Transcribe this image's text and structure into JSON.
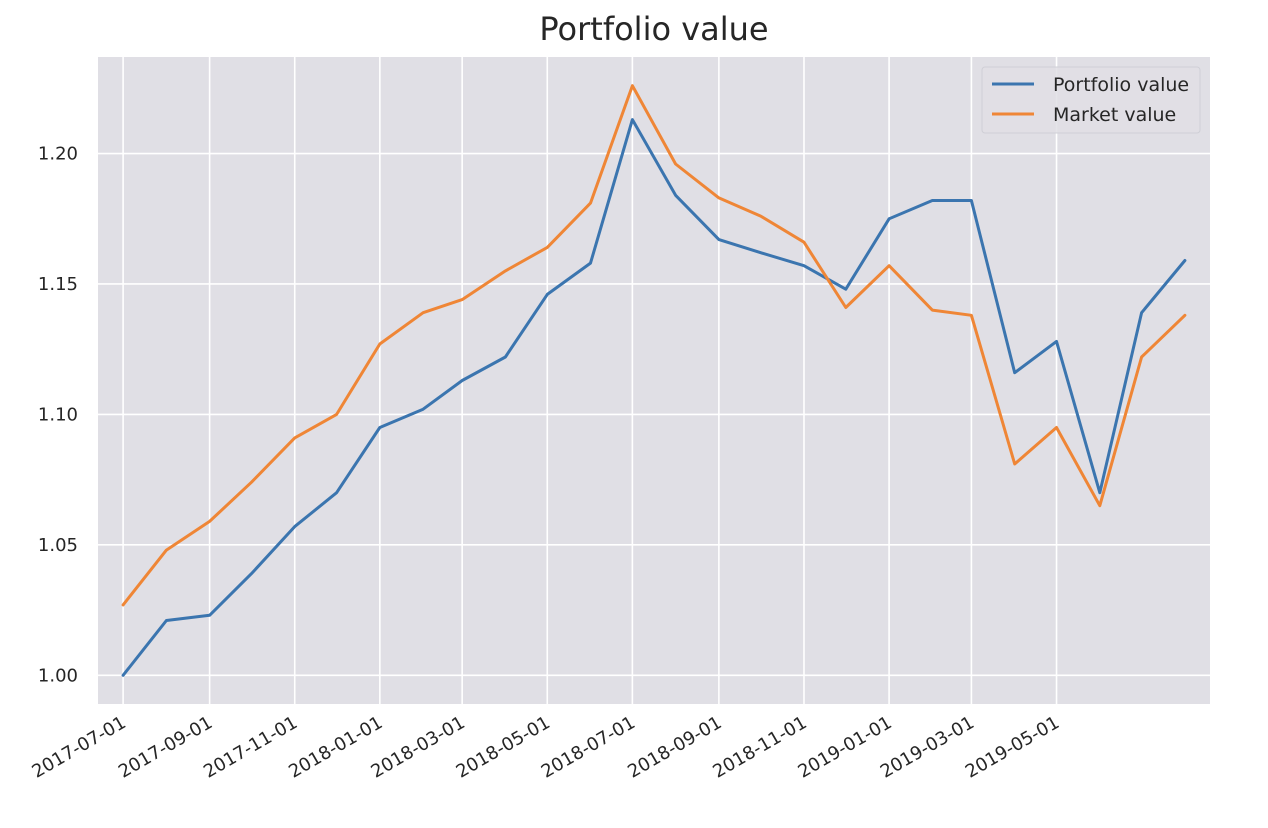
{
  "chart_data": {
    "type": "line",
    "title": "Portfolio value",
    "xlabel": "",
    "ylabel": "",
    "x": [
      "2017-07-01",
      "2017-08-01",
      "2017-09-01",
      "2017-10-01",
      "2017-11-01",
      "2017-12-01",
      "2018-01-01",
      "2018-02-01",
      "2018-03-01",
      "2018-04-01",
      "2018-05-01",
      "2018-06-01",
      "2018-07-01",
      "2018-08-01",
      "2018-09-01",
      "2018-10-01",
      "2018-11-01",
      "2018-12-01",
      "2019-01-01",
      "2019-02-01",
      "2019-03-01",
      "2019-04-01",
      "2019-05-01",
      "2019-06-01",
      "2019-07-01",
      "2019-08-01"
    ],
    "series": [
      {
        "name": "Portfolio value",
        "color": "#3b75af",
        "values": [
          1.0,
          1.021,
          1.023,
          1.039,
          1.057,
          1.07,
          1.095,
          1.102,
          1.113,
          1.122,
          1.146,
          1.158,
          1.213,
          1.184,
          1.167,
          1.162,
          1.157,
          1.148,
          1.175,
          1.182,
          1.182,
          1.116,
          1.128,
          1.07,
          1.139,
          1.159
        ]
      },
      {
        "name": "Market value",
        "color": "#ef8636",
        "values": [
          1.027,
          1.048,
          1.059,
          1.074,
          1.091,
          1.1,
          1.127,
          1.139,
          1.144,
          1.155,
          1.164,
          1.181,
          1.226,
          1.196,
          1.183,
          1.176,
          1.166,
          1.141,
          1.157,
          1.14,
          1.138,
          1.081,
          1.095,
          1.065,
          1.122,
          1.138
        ]
      }
    ],
    "xticks": [
      "2017-07-01",
      "2017-09-01",
      "2017-11-01",
      "2018-01-01",
      "2018-03-01",
      "2018-05-01",
      "2018-07-01",
      "2018-09-01",
      "2018-11-01",
      "2019-01-01",
      "2019-03-01",
      "2019-05-01"
    ],
    "yticks": [
      "1.00",
      "1.05",
      "1.10",
      "1.15",
      "1.20"
    ],
    "ylim": [
      0.989,
      1.237
    ],
    "xlim": [
      "2017-06-13",
      "2019-08-19"
    ],
    "grid": true,
    "legend": "top-right",
    "background_color": "#e0dfe5",
    "grid_color": "#ffffff"
  }
}
